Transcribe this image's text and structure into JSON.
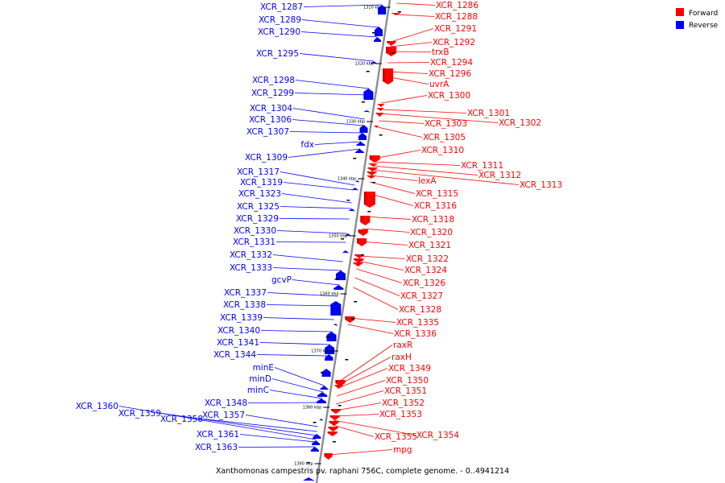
{
  "legend": [
    {
      "label": "Forward",
      "color": "#ff0000"
    },
    {
      "label": "Reverse",
      "color": "#0000ff"
    }
  ],
  "caption": "Xanthomonas campestris pv. raphani 756C, complete genome. - 0..4941214",
  "ticks": [
    "1310 kbp",
    "1320 kbp",
    "1330 kbp",
    "1340 kbp",
    "1350 kbp",
    "1360 kbp",
    "1370 kbp",
    "1380 kbp",
    "1390 kbp"
  ],
  "reverse_genes": [
    "XCR_1287",
    "XCR_1289",
    "XCR_1290",
    "XCR_1295",
    "XCR_1298",
    "XCR_1299",
    "XCR_1304",
    "XCR_1306",
    "XCR_1307",
    "fdx",
    "XCR_1309",
    "XCR_1317",
    "XCR_1319",
    "XCR_1323",
    "XCR_1325",
    "XCR_1329",
    "XCR_1330",
    "XCR_1331",
    "XCR_1332",
    "XCR_1333",
    "gcvP",
    "XCR_1337",
    "XCR_1338",
    "XCR_1339",
    "XCR_1340",
    "XCR_1341",
    "XCR_1344",
    "minE",
    "minD",
    "minC",
    "XCR_1348",
    "XCR_1357",
    "XCR_1358",
    "XCR_1359",
    "XCR_1360",
    "XCR_1361",
    "XCR_1363"
  ],
  "forward_genes": [
    "XCR_1286",
    "XCR_1288",
    "XCR_1291",
    "XCR_1292",
    "trxB",
    "XCR_1294",
    "XCR_1296",
    "uvrA",
    "XCR_1300",
    "XCR_1301",
    "XCR_1302",
    "XCR_1303",
    "XCR_1305",
    "XCR_1310",
    "XCR_1311",
    "XCR_1312",
    "XCR_1313",
    "lexA",
    "XCR_1315",
    "XCR_1316",
    "XCR_1318",
    "XCR_1320",
    "XCR_1321",
    "XCR_1322",
    "XCR_1324",
    "XCR_1326",
    "XCR_1327",
    "XCR_1328",
    "XCR_1335",
    "XCR_1336",
    "raxR",
    "raxH",
    "XCR_1349",
    "XCR_1350",
    "XCR_1351",
    "XCR_1352",
    "XCR_1353",
    "XCR_1354",
    "XCR_1355",
    "mpg"
  ]
}
